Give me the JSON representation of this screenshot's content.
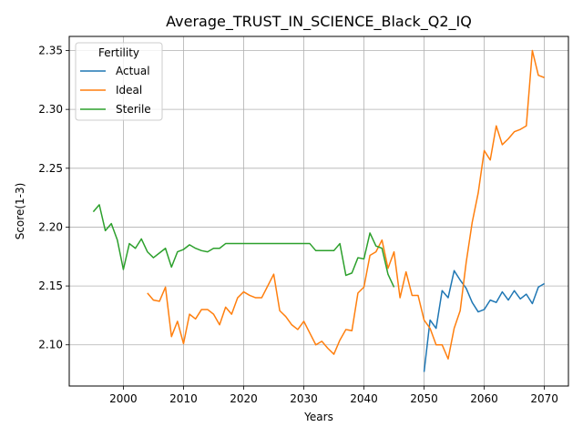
{
  "chart_data": {
    "type": "line",
    "title": "Average_TRUST_IN_SCIENCE_Black_Q2_IQ",
    "xlabel": "Years",
    "ylabel": "Score(1-3)",
    "xlim": [
      1991,
      2074
    ],
    "ylim": [
      2.065,
      2.362
    ],
    "xticks": [
      2000,
      2010,
      2020,
      2030,
      2040,
      2050,
      2060,
      2070
    ],
    "yticks": [
      2.1,
      2.15,
      2.2,
      2.25,
      2.3,
      2.35
    ],
    "grid": true,
    "legend": {
      "title": "Fertility",
      "placement": "upper-left"
    },
    "series": [
      {
        "name": "Actual",
        "color": "#1f77b4",
        "x": [
          2050,
          2051,
          2052,
          2053,
          2054,
          2055,
          2056,
          2057,
          2058,
          2059,
          2060,
          2061,
          2062,
          2063,
          2064,
          2065,
          2066,
          2067,
          2068,
          2069,
          2070
        ],
        "y": [
          2.077,
          2.121,
          2.114,
          2.146,
          2.14,
          2.163,
          2.155,
          2.148,
          2.136,
          2.128,
          2.13,
          2.138,
          2.136,
          2.145,
          2.138,
          2.146,
          2.139,
          2.143,
          2.135,
          2.149,
          2.152
        ]
      },
      {
        "name": "Ideal",
        "color": "#ff7f0e",
        "x": [
          2004,
          2005,
          2006,
          2007,
          2008,
          2009,
          2010,
          2011,
          2012,
          2013,
          2014,
          2015,
          2016,
          2017,
          2018,
          2019,
          2020,
          2021,
          2022,
          2023,
          2024,
          2025,
          2026,
          2027,
          2028,
          2029,
          2030,
          2031,
          2032,
          2033,
          2034,
          2035,
          2036,
          2037,
          2038,
          2039,
          2040,
          2041,
          2042,
          2043,
          2044,
          2045,
          2046,
          2047,
          2048,
          2049,
          2050,
          2051,
          2052,
          2053,
          2054,
          2055,
          2056,
          2057,
          2058,
          2059,
          2060,
          2061,
          2062,
          2063,
          2064,
          2065,
          2066,
          2067,
          2068,
          2069,
          2070
        ],
        "y": [
          2.144,
          2.138,
          2.137,
          2.149,
          2.107,
          2.12,
          2.101,
          2.126,
          2.122,
          2.13,
          2.13,
          2.126,
          2.117,
          2.132,
          2.126,
          2.14,
          2.145,
          2.142,
          2.14,
          2.14,
          2.15,
          2.16,
          2.129,
          2.124,
          2.117,
          2.113,
          2.12,
          2.11,
          2.1,
          2.103,
          2.097,
          2.092,
          2.104,
          2.113,
          2.112,
          2.144,
          2.149,
          2.176,
          2.179,
          2.189,
          2.165,
          2.179,
          2.14,
          2.162,
          2.142,
          2.142,
          2.121,
          2.114,
          2.1,
          2.1,
          2.088,
          2.114,
          2.129,
          2.17,
          2.204,
          2.229,
          2.265,
          2.257,
          2.286,
          2.27,
          2.275,
          2.281,
          2.283,
          2.286,
          2.35,
          2.329,
          2.327
        ]
      },
      {
        "name": "Sterile",
        "color": "#2ca02c",
        "x": [
          1995,
          1996,
          1997,
          1998,
          1999,
          2000,
          2001,
          2002,
          2003,
          2004,
          2005,
          2006,
          2007,
          2008,
          2009,
          2010,
          2011,
          2012,
          2013,
          2014,
          2015,
          2016,
          2017,
          2018,
          2019,
          2020,
          2021,
          2022,
          2023,
          2024,
          2025,
          2026,
          2027,
          2028,
          2029,
          2030,
          2031,
          2032,
          2033,
          2034,
          2035,
          2036,
          2037,
          2038,
          2039,
          2040,
          2041,
          2042,
          2043,
          2044,
          2045
        ],
        "y": [
          2.213,
          2.219,
          2.197,
          2.203,
          2.189,
          2.164,
          2.186,
          2.182,
          2.19,
          2.179,
          2.174,
          2.178,
          2.182,
          2.166,
          2.179,
          2.181,
          2.185,
          2.182,
          2.18,
          2.179,
          2.182,
          2.182,
          2.186,
          2.186,
          2.186,
          2.186,
          2.186,
          2.186,
          2.186,
          2.186,
          2.186,
          2.186,
          2.186,
          2.186,
          2.186,
          2.186,
          2.186,
          2.18,
          2.18,
          2.18,
          2.18,
          2.186,
          2.159,
          2.161,
          2.174,
          2.173,
          2.195,
          2.184,
          2.182,
          2.16,
          2.149
        ]
      }
    ]
  }
}
